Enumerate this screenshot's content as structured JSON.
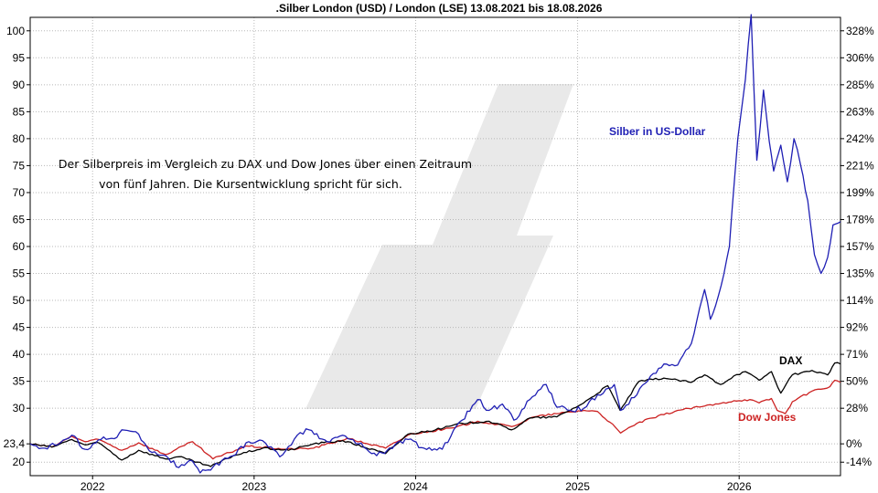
{
  "chart_data": {
    "type": "line",
    "title": ".Silber London (USD) / London (LSE) 13.08.2021 bis 18.08.2026",
    "annotation": [
      "Der Silberpreis im Vergleich zu DAX und Dow Jones über einen Zeitraum",
      "von fünf Jahren. Die Kursentwicklung spricht für sich."
    ],
    "x_range": [
      "2021-08-13",
      "2026-08-18"
    ],
    "x_ticks": [
      "2022",
      "2023",
      "2024",
      "2025",
      "2026"
    ],
    "y_left_ticks": [
      "100",
      "95",
      "90",
      "85",
      "80",
      "75",
      "70",
      "65",
      "60",
      "55",
      "50",
      "45",
      "40",
      "35",
      "30",
      "23,4",
      "20"
    ],
    "y_right_ticks": [
      "328%",
      "306%",
      "285%",
      "263%",
      "242%",
      "221%",
      "199%",
      "178%",
      "157%",
      "135%",
      "114%",
      "92%",
      "71%",
      "50%",
      "28%",
      "0%",
      "-14%"
    ],
    "y_left_range": [
      17.5,
      102.5
    ],
    "grid": true,
    "colors": {
      "silber": "#1f1fb4",
      "dax": "#000000",
      "dow": "#cc2222",
      "watermark": "#e8e8e8"
    },
    "series": [
      {
        "name": "Silber in US-Dollar",
        "key": "silber",
        "points": [
          [
            "2021-08-13",
            23.4
          ],
          [
            "2021-09-15",
            22.6
          ],
          [
            "2021-10-20",
            23.6
          ],
          [
            "2021-11-15",
            25.0
          ],
          [
            "2021-12-15",
            22.4
          ],
          [
            "2022-01-20",
            24.2
          ],
          [
            "2022-02-25",
            24.6
          ],
          [
            "2022-03-08",
            26.0
          ],
          [
            "2022-04-15",
            25.2
          ],
          [
            "2022-05-15",
            21.8
          ],
          [
            "2022-06-15",
            21.2
          ],
          [
            "2022-07-15",
            19.0
          ],
          [
            "2022-08-15",
            20.2
          ],
          [
            "2022-09-01",
            18.0
          ],
          [
            "2022-10-01",
            19.2
          ],
          [
            "2022-11-15",
            21.2
          ],
          [
            "2022-12-20",
            23.8
          ],
          [
            "2023-01-20",
            24.0
          ],
          [
            "2023-02-28",
            21.0
          ],
          [
            "2023-04-15",
            25.5
          ],
          [
            "2023-05-05",
            26.0
          ],
          [
            "2023-06-15",
            23.8
          ],
          [
            "2023-07-20",
            25.0
          ],
          [
            "2023-08-25",
            23.4
          ],
          [
            "2023-10-05",
            21.2
          ],
          [
            "2023-11-15",
            23.2
          ],
          [
            "2023-12-15",
            24.2
          ],
          [
            "2024-01-20",
            22.6
          ],
          [
            "2024-03-01",
            22.4
          ],
          [
            "2024-04-15",
            27.8
          ],
          [
            "2024-05-20",
            31.6
          ],
          [
            "2024-06-15",
            29.6
          ],
          [
            "2024-07-15",
            30.8
          ],
          [
            "2024-08-10",
            27.8
          ],
          [
            "2024-09-15",
            31.6
          ],
          [
            "2024-10-22",
            34.4
          ],
          [
            "2024-11-15",
            30.2
          ],
          [
            "2024-12-15",
            29.6
          ],
          [
            "2025-01-15",
            30.0
          ],
          [
            "2025-02-15",
            32.5
          ],
          [
            "2025-03-25",
            34.4
          ],
          [
            "2025-04-08",
            29.6
          ],
          [
            "2025-05-15",
            32.5
          ],
          [
            "2025-06-15",
            36.0
          ],
          [
            "2025-07-15",
            38.2
          ],
          [
            "2025-08-15",
            38.0
          ],
          [
            "2025-09-15",
            42.0
          ],
          [
            "2025-10-15",
            52.0
          ],
          [
            "2025-10-28",
            46.5
          ],
          [
            "2025-11-15",
            50.8
          ],
          [
            "2025-12-10",
            60.0
          ],
          [
            "2025-12-29",
            80.0
          ],
          [
            "2026-01-15",
            91.0
          ],
          [
            "2026-01-28",
            103.0
          ],
          [
            "2026-02-10",
            76.0
          ],
          [
            "2026-02-25",
            89.0
          ],
          [
            "2026-03-10",
            79.5
          ],
          [
            "2026-03-20",
            74.0
          ],
          [
            "2026-04-05",
            78.8
          ],
          [
            "2026-04-20",
            72.0
          ],
          [
            "2026-05-05",
            80.0
          ],
          [
            "2026-05-20",
            75.0
          ],
          [
            "2026-06-05",
            68.5
          ],
          [
            "2026-06-20",
            58.5
          ],
          [
            "2026-07-05",
            55.0
          ],
          [
            "2026-07-20",
            58.0
          ],
          [
            "2026-08-01",
            64.0
          ],
          [
            "2026-08-18",
            64.6
          ]
        ]
      },
      {
        "name": "DAX",
        "key": "dax",
        "points": [
          [
            "2021-08-13",
            23.4
          ],
          [
            "2021-10-01",
            22.8
          ],
          [
            "2021-11-15",
            24.2
          ],
          [
            "2021-12-15",
            23.2
          ],
          [
            "2022-01-15",
            23.6
          ],
          [
            "2022-03-08",
            20.4
          ],
          [
            "2022-04-15",
            22.2
          ],
          [
            "2022-06-15",
            20.6
          ],
          [
            "2022-07-15",
            21.0
          ],
          [
            "2022-09-25",
            19.2
          ],
          [
            "2022-11-15",
            21.2
          ],
          [
            "2023-01-20",
            22.6
          ],
          [
            "2023-03-20",
            22.2
          ],
          [
            "2023-05-15",
            23.4
          ],
          [
            "2023-07-20",
            24.0
          ],
          [
            "2023-10-25",
            21.6
          ],
          [
            "2023-12-15",
            25.2
          ],
          [
            "2024-02-15",
            26.0
          ],
          [
            "2024-04-15",
            27.2
          ],
          [
            "2024-06-15",
            27.6
          ],
          [
            "2024-08-05",
            26.0
          ],
          [
            "2024-09-15",
            28.2
          ],
          [
            "2024-11-15",
            28.4
          ],
          [
            "2025-01-15",
            31.0
          ],
          [
            "2025-03-10",
            34.2
          ],
          [
            "2025-04-07",
            29.6
          ],
          [
            "2025-05-20",
            35.0
          ],
          [
            "2025-07-15",
            35.6
          ],
          [
            "2025-09-15",
            34.8
          ],
          [
            "2025-10-15",
            36.2
          ],
          [
            "2025-11-20",
            34.4
          ],
          [
            "2025-12-20",
            36.0
          ],
          [
            "2026-01-15",
            36.8
          ],
          [
            "2026-02-15",
            35.2
          ],
          [
            "2026-03-15",
            36.8
          ],
          [
            "2026-04-05",
            32.8
          ],
          [
            "2026-05-01",
            36.2
          ],
          [
            "2026-06-15",
            37.0
          ],
          [
            "2026-07-20",
            36.2
          ],
          [
            "2026-08-05",
            38.4
          ],
          [
            "2026-08-18",
            38.2
          ]
        ]
      },
      {
        "name": "Dow Jones",
        "key": "dow",
        "points": [
          [
            "2021-08-13",
            23.4
          ],
          [
            "2021-10-01",
            22.8
          ],
          [
            "2021-11-15",
            24.8
          ],
          [
            "2021-12-15",
            23.8
          ],
          [
            "2022-01-15",
            24.2
          ],
          [
            "2022-03-08",
            22.2
          ],
          [
            "2022-04-15",
            23.6
          ],
          [
            "2022-06-15",
            21.4
          ],
          [
            "2022-08-15",
            23.8
          ],
          [
            "2022-09-30",
            20.6
          ],
          [
            "2022-12-15",
            23.0
          ],
          [
            "2023-03-15",
            22.4
          ],
          [
            "2023-05-15",
            22.6
          ],
          [
            "2023-07-30",
            24.4
          ],
          [
            "2023-10-25",
            22.6
          ],
          [
            "2023-12-20",
            25.2
          ],
          [
            "2024-03-30",
            26.4
          ],
          [
            "2024-05-20",
            27.6
          ],
          [
            "2024-08-05",
            26.6
          ],
          [
            "2024-09-25",
            28.4
          ],
          [
            "2024-11-15",
            29.0
          ],
          [
            "2025-01-15",
            29.6
          ],
          [
            "2025-02-15",
            29.4
          ],
          [
            "2025-03-15",
            27.4
          ],
          [
            "2025-04-08",
            25.4
          ],
          [
            "2025-05-15",
            27.2
          ],
          [
            "2025-06-20",
            28.2
          ],
          [
            "2025-08-15",
            29.6
          ],
          [
            "2025-10-15",
            30.4
          ],
          [
            "2025-11-15",
            30.8
          ],
          [
            "2025-12-20",
            31.4
          ],
          [
            "2026-01-25",
            31.6
          ],
          [
            "2026-02-15",
            31.0
          ],
          [
            "2026-03-15",
            31.8
          ],
          [
            "2026-03-28",
            29.6
          ],
          [
            "2026-04-15",
            29.0
          ],
          [
            "2026-05-01",
            31.2
          ],
          [
            "2026-06-15",
            33.2
          ],
          [
            "2026-07-25",
            34.0
          ],
          [
            "2026-08-05",
            35.2
          ],
          [
            "2026-08-18",
            34.8
          ]
        ]
      }
    ]
  }
}
